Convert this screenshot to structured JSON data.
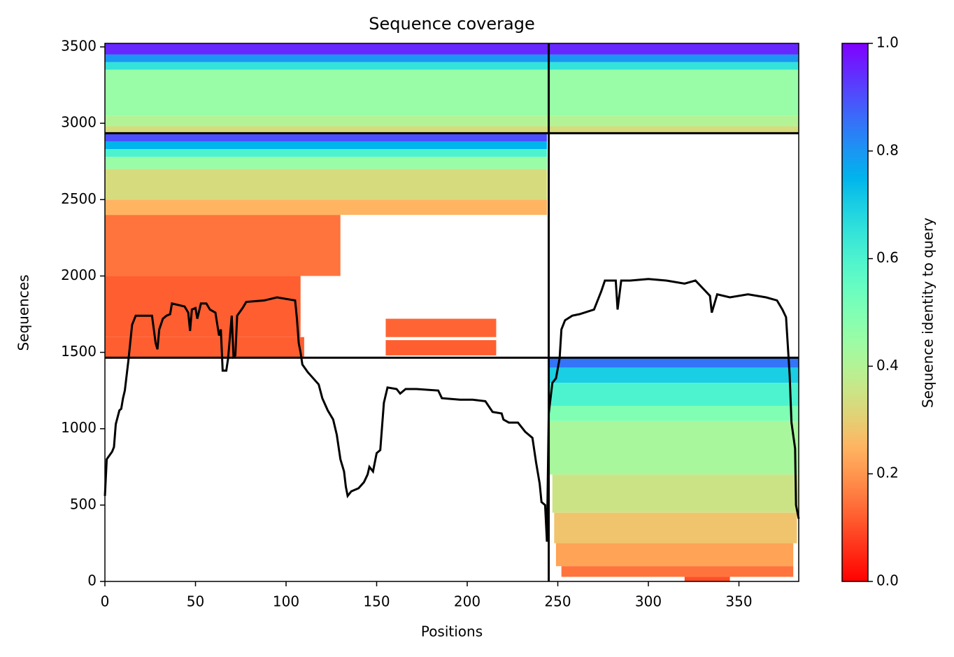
{
  "chart_data": {
    "type": "heatmap",
    "title": "Sequence coverage",
    "x_label": "Positions",
    "y_label": "Sequences",
    "colorbar_label": "Sequence identity to query",
    "colormap": "rainbow_r",
    "xlim": [
      0,
      383
    ],
    "ylim": [
      0,
      3523
    ],
    "xticks": [
      0,
      50,
      100,
      150,
      200,
      250,
      300,
      350
    ],
    "yticks": [
      0,
      500,
      1000,
      1500,
      2000,
      2500,
      3000,
      3500
    ],
    "clim": [
      0,
      1
    ],
    "cticks": [
      {
        "value": 0,
        "label": "0.0"
      },
      {
        "value": 0.2,
        "label": "0.2"
      },
      {
        "value": 0.4,
        "label": "0.4"
      },
      {
        "value": 0.6,
        "label": "0.6"
      },
      {
        "value": 0.8,
        "label": "0.8"
      },
      {
        "value": 1,
        "label": "1.0"
      }
    ],
    "boundaries_x": [
      245
    ],
    "boundaries_y": [
      1465,
      2935
    ],
    "blocks": [
      {
        "x": [
          0,
          245
        ],
        "y": [
          3450,
          3523
        ],
        "identity": 0.95
      },
      {
        "x": [
          0,
          245
        ],
        "y": [
          3400,
          3450
        ],
        "identity": 0.8
      },
      {
        "x": [
          0,
          245
        ],
        "y": [
          3350,
          3400
        ],
        "identity": 0.65
      },
      {
        "x": [
          0,
          245
        ],
        "y": [
          3050,
          3350
        ],
        "identity": 0.45
      },
      {
        "x": [
          0,
          245
        ],
        "y": [
          2980,
          3050
        ],
        "identity": 0.4
      },
      {
        "x": [
          0,
          245
        ],
        "y": [
          2935,
          2980
        ],
        "identity": 0.33
      },
      {
        "x": [
          245,
          383
        ],
        "y": [
          3450,
          3523
        ],
        "identity": 0.95
      },
      {
        "x": [
          245,
          383
        ],
        "y": [
          3400,
          3450
        ],
        "identity": 0.8
      },
      {
        "x": [
          245,
          383
        ],
        "y": [
          3350,
          3400
        ],
        "identity": 0.65
      },
      {
        "x": [
          245,
          383
        ],
        "y": [
          3050,
          3350
        ],
        "identity": 0.45
      },
      {
        "x": [
          245,
          383
        ],
        "y": [
          2980,
          3050
        ],
        "identity": 0.4
      },
      {
        "x": [
          245,
          383
        ],
        "y": [
          2935,
          2980
        ],
        "identity": 0.33
      },
      {
        "x": [
          0,
          244
        ],
        "y": [
          2880,
          2935
        ],
        "identity": 0.9
      },
      {
        "x": [
          0,
          244
        ],
        "y": [
          2830,
          2880
        ],
        "identity": 0.75
      },
      {
        "x": [
          0,
          244
        ],
        "y": [
          2780,
          2830
        ],
        "identity": 0.6
      },
      {
        "x": [
          0,
          244
        ],
        "y": [
          2700,
          2780
        ],
        "identity": 0.45
      },
      {
        "x": [
          0,
          244
        ],
        "y": [
          2500,
          2700
        ],
        "identity": 0.33
      },
      {
        "x": [
          0,
          244
        ],
        "y": [
          2400,
          2500
        ],
        "identity": 0.25
      },
      {
        "x": [
          0,
          130
        ],
        "y": [
          2000,
          2400
        ],
        "identity": 0.15
      },
      {
        "x": [
          0,
          108
        ],
        "y": [
          1600,
          2000
        ],
        "identity": 0.12
      },
      {
        "x": [
          0,
          110
        ],
        "y": [
          1465,
          1600
        ],
        "identity": 0.12
      },
      {
        "x": [
          155,
          216
        ],
        "y": [
          1480,
          1580
        ],
        "identity": 0.12
      },
      {
        "x": [
          155,
          216
        ],
        "y": [
          1600,
          1720
        ],
        "identity": 0.13
      },
      {
        "x": [
          245,
          383
        ],
        "y": [
          1400,
          1465
        ],
        "identity": 0.85
      },
      {
        "x": [
          245,
          383
        ],
        "y": [
          1300,
          1400
        ],
        "identity": 0.7
      },
      {
        "x": [
          245,
          383
        ],
        "y": [
          1150,
          1300
        ],
        "identity": 0.6
      },
      {
        "x": [
          245,
          383
        ],
        "y": [
          1050,
          1150
        ],
        "identity": 0.5
      },
      {
        "x": [
          245,
          383
        ],
        "y": [
          700,
          1050
        ],
        "identity": 0.42
      },
      {
        "x": [
          247,
          383
        ],
        "y": [
          450,
          700
        ],
        "identity": 0.35
      },
      {
        "x": [
          248,
          382
        ],
        "y": [
          250,
          450
        ],
        "identity": 0.28
      },
      {
        "x": [
          249,
          380
        ],
        "y": [
          100,
          250
        ],
        "identity": 0.22
      },
      {
        "x": [
          252,
          380
        ],
        "y": [
          30,
          100
        ],
        "identity": 0.15
      },
      {
        "x": [
          320,
          345
        ],
        "y": [
          0,
          30
        ],
        "identity": 0.1
      }
    ],
    "line": {
      "color": "#000000",
      "x": [
        0,
        1,
        4,
        5,
        6,
        8,
        9,
        10,
        11,
        13,
        15,
        17,
        26,
        28,
        29,
        30,
        32,
        34,
        36,
        37,
        44,
        46,
        47,
        48,
        50,
        51,
        53,
        56,
        58,
        61,
        63,
        64,
        65,
        67,
        68,
        70,
        71,
        72,
        73,
        76,
        78,
        88,
        95,
        105,
        106,
        107,
        108,
        109,
        112,
        115,
        118,
        120,
        123,
        126,
        128,
        130,
        131,
        132,
        133,
        134,
        136,
        140,
        143,
        145,
        146,
        148,
        150,
        152,
        154,
        156,
        161,
        163,
        166,
        172,
        184,
        186,
        196,
        203,
        210,
        214,
        219,
        220,
        223,
        228,
        232,
        236,
        238,
        240,
        241,
        243,
        244,
        245,
        247,
        249,
        251,
        252,
        254,
        258,
        262,
        270,
        274,
        276,
        282,
        283,
        285,
        290,
        300,
        310,
        320,
        326,
        330,
        334,
        335,
        338,
        345,
        355,
        365,
        371,
        374,
        376,
        378,
        379,
        381,
        381.5,
        383
      ],
      "values": [
        560,
        800,
        850,
        880,
        1030,
        1120,
        1130,
        1200,
        1250,
        1450,
        1680,
        1740,
        1740,
        1560,
        1520,
        1650,
        1720,
        1740,
        1750,
        1820,
        1800,
        1760,
        1640,
        1780,
        1790,
        1720,
        1820,
        1820,
        1780,
        1760,
        1610,
        1650,
        1380,
        1380,
        1460,
        1740,
        1470,
        1480,
        1740,
        1790,
        1830,
        1840,
        1860,
        1840,
        1720,
        1560,
        1500,
        1420,
        1370,
        1330,
        1290,
        1200,
        1120,
        1060,
        960,
        800,
        760,
        720,
        620,
        560,
        590,
        610,
        650,
        700,
        750,
        720,
        840,
        860,
        1170,
        1270,
        1260,
        1230,
        1260,
        1260,
        1250,
        1200,
        1190,
        1190,
        1180,
        1110,
        1100,
        1060,
        1040,
        1040,
        980,
        940,
        780,
        640,
        520,
        500,
        260,
        1100,
        1300,
        1330,
        1460,
        1650,
        1710,
        1740,
        1750,
        1780,
        1900,
        1970,
        1970,
        1780,
        1970,
        1970,
        1980,
        1970,
        1950,
        1970,
        1920,
        1870,
        1760,
        1880,
        1860,
        1880,
        1860,
        1840,
        1780,
        1730,
        1350,
        1040,
        870,
        500,
        410
      ]
    }
  }
}
